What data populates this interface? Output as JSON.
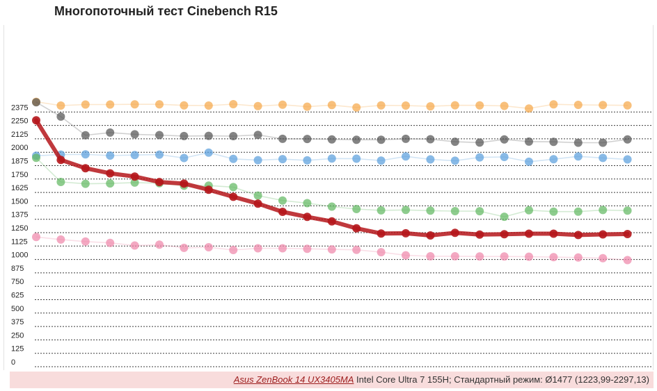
{
  "chart_data": {
    "type": "line",
    "title": "Многопоточный тест Cinebench R15",
    "xlabel": "",
    "ylabel": "",
    "ylim": [
      0,
      2420
    ],
    "yticks": [
      0,
      125,
      250,
      375,
      500,
      625,
      750,
      875,
      1000,
      1125,
      1250,
      1375,
      1500,
      1625,
      1750,
      1875,
      2000,
      2125,
      2250,
      2375
    ],
    "grid": true,
    "x": [
      1,
      2,
      3,
      4,
      5,
      6,
      7,
      8,
      9,
      10,
      11,
      12,
      13,
      14,
      15,
      16,
      17,
      18,
      19,
      20,
      21,
      22,
      23,
      24,
      25
    ],
    "series": [
      {
        "color": "#f5a84a",
        "values": [
          2470,
          2435,
          2445,
          2445,
          2447,
          2447,
          2437,
          2435,
          2448,
          2430,
          2443,
          2425,
          2440,
          2418,
          2437,
          2435,
          2428,
          2438,
          2437,
          2432,
          2408,
          2447,
          2442,
          2440,
          2437
        ]
      },
      {
        "color": "#555555",
        "values": [
          2466,
          2332,
          2159,
          2183,
          2167,
          2160,
          2151,
          2153,
          2150,
          2162,
          2125,
          2124,
          2120,
          2116,
          2116,
          2125,
          2121,
          2098,
          2090,
          2120,
          2099,
          2097,
          2089,
          2089,
          2120
        ]
      },
      {
        "color": "#5ca0dc",
        "values": [
          1967,
          1978,
          1980,
          1969,
          1974,
          1978,
          1946,
          1997,
          1938,
          1926,
          1936,
          1924,
          1941,
          1940,
          1922,
          1961,
          1933,
          1921,
          1952,
          1956,
          1911,
          1935,
          1961,
          1947,
          1933
        ]
      },
      {
        "color": "#62b862",
        "values": [
          1948,
          1723,
          1706,
          1709,
          1717,
          1711,
          1688,
          1689,
          1675,
          1596,
          1550,
          1525,
          1493,
          1470,
          1458,
          1462,
          1455,
          1451,
          1450,
          1398,
          1459,
          1446,
          1446,
          1461,
          1455
        ]
      },
      {
        "color": "#b5161b",
        "values": [
          2297,
          1929,
          1851,
          1803,
          1773,
          1722,
          1707,
          1650,
          1584,
          1521,
          1444,
          1397,
          1355,
          1290,
          1242,
          1244,
          1224,
          1248,
          1232,
          1235,
          1240,
          1240,
          1228,
          1234,
          1237
        ]
      },
      {
        "color": "#ee88aa",
        "values": [
          1210,
          1186,
          1167,
          1155,
          1130,
          1138,
          1108,
          1114,
          1088,
          1104,
          1104,
          1100,
          1094,
          1090,
          1068,
          1039,
          1030,
          1030,
          1028,
          1028,
          1026,
          1022,
          1018,
          1012,
          994
        ]
      }
    ]
  },
  "footer": {
    "device": "Asus ZenBook 14 UX3405MA",
    "details": " Intel Core Ultra 7 155H; Стандартный режим: Ø1477 (1223,99-2297,13)"
  }
}
